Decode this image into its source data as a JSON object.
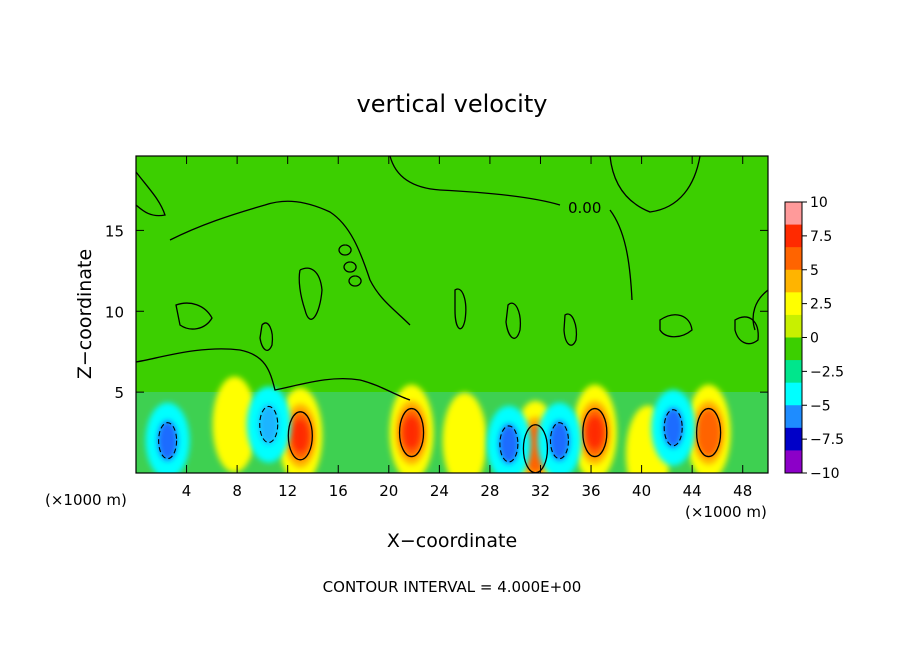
{
  "chart_data": {
    "type": "heatmap",
    "title": "vertical velocity",
    "xlabel": "X−coordinate",
    "ylabel": "Z−coordinate",
    "x_unit_left": "(×1000 m)",
    "x_unit_right": "(×1000 m)",
    "xlim": [
      0,
      50
    ],
    "ylim": [
      0,
      19.6
    ],
    "x_ticks": [
      4,
      8,
      12,
      16,
      20,
      24,
      28,
      32,
      36,
      40,
      44,
      48
    ],
    "y_ticks": [
      5,
      10,
      15
    ],
    "colorbar": {
      "range": [
        -10,
        10
      ],
      "tick_values": [
        10,
        7.5,
        5,
        2.5,
        0,
        -2.5,
        -5,
        -7.5,
        -10
      ],
      "tick_labels": [
        "10",
        "7.5",
        "5",
        "2.5",
        "0",
        "−2.5",
        "−5",
        "−7.5",
        "−10"
      ],
      "colors": [
        "#ff9a9a",
        "#ff2a00",
        "#ff6400",
        "#ffb400",
        "#ffff00",
        "#c8f000",
        "#3ccf00",
        "#00e68c",
        "#00ffff",
        "#1e8cff",
        "#0000c8",
        "#8c00c8"
      ]
    },
    "contour_label": "0.00",
    "updrafts": [
      {
        "x": 13.0,
        "z": 2.3,
        "w": 8.0
      },
      {
        "x": 21.8,
        "z": 2.5,
        "w": 8.0
      },
      {
        "x": 36.3,
        "z": 2.5,
        "w": 7.5
      },
      {
        "x": 45.3,
        "z": 2.5,
        "w": 7.0
      },
      {
        "x": 31.6,
        "z": 1.5,
        "w": 6.0
      },
      {
        "x": 7.8,
        "z": 3.0,
        "w": 3.5
      },
      {
        "x": 26.0,
        "z": 2.0,
        "w": 3.0
      },
      {
        "x": 40.5,
        "z": 1.2,
        "w": 2.5
      }
    ],
    "downdrafts": [
      {
        "x": 2.5,
        "z": 2.0,
        "w": -5.0
      },
      {
        "x": 10.5,
        "z": 3.0,
        "w": -4.0
      },
      {
        "x": 29.5,
        "z": 1.8,
        "w": -7.0
      },
      {
        "x": 33.5,
        "z": 2.0,
        "w": -6.5
      },
      {
        "x": 42.5,
        "z": 2.8,
        "w": -5.0
      }
    ]
  },
  "footer": {
    "contour_interval": "CONTOUR INTERVAL = 4.000E+00"
  }
}
